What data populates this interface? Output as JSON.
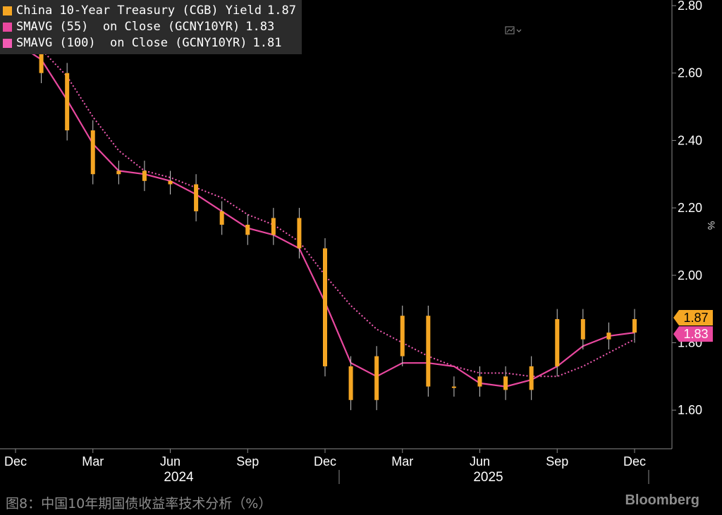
{
  "legend": {
    "items": [
      {
        "name": "China 10-Year Treasury (CGB) Yield",
        "value": "1.87",
        "color": "#f5a623"
      },
      {
        "name": "SMAVG (55)  on Close (GCNY10YR)",
        "value": "1.83",
        "color": "#e9489f"
      },
      {
        "name": "SMAVG (100)  on Close (GCNY10YR)",
        "value": "1.81",
        "color": "#f25bb3"
      }
    ]
  },
  "caption": "图8：中国10年期国债收益率技术分析（%）",
  "brand": "Bloomberg",
  "chart_data": {
    "type": "line",
    "y_unit": "%",
    "ylim": [
      1.5,
      2.8
    ],
    "y_ticks": [
      "2.80",
      "2.60",
      "2.40",
      "2.20",
      "2.00",
      "1.80",
      "1.60"
    ],
    "x_ticks": [
      "Dec",
      "Mar",
      "Jun",
      "Sep",
      "Dec",
      "Mar",
      "Jun",
      "Sep",
      "Dec"
    ],
    "x_tick_dates": [
      "2023-12",
      "2024-03",
      "2024-06",
      "2024-09",
      "2024-12",
      "2025-03",
      "2025-06",
      "2025-09",
      "2025-12"
    ],
    "years": [
      "2024",
      "2025"
    ],
    "grid": false,
    "legend_position": "top-left",
    "last_value_labels": [
      "1.87",
      "1.83"
    ],
    "series": [
      {
        "name": "China 10-Year Treasury (CGB) Yield",
        "style": "candles",
        "color": "#f5a623",
        "x": [
          "2023-12",
          "2024-01",
          "2024-02",
          "2024-03",
          "2024-04",
          "2024-05",
          "2024-06",
          "2024-07",
          "2024-08",
          "2024-09",
          "2024-10",
          "2024-11",
          "2024-12",
          "2025-01",
          "2025-02",
          "2025-03",
          "2025-04",
          "2025-05",
          "2025-06",
          "2025-07",
          "2025-08",
          "2025-09",
          "2025-10",
          "2025-11",
          "2025-12"
        ],
        "values": [
          2.7,
          2.6,
          2.43,
          2.3,
          2.31,
          2.28,
          2.27,
          2.19,
          2.15,
          2.12,
          2.17,
          2.08,
          1.73,
          1.63,
          1.76,
          1.88,
          1.67,
          1.67,
          1.7,
          1.66,
          1.73,
          1.87,
          1.81,
          1.83,
          1.87
        ]
      },
      {
        "name": "SMAVG (55)  on Close (GCNY10YR)",
        "style": "solid",
        "color": "#e9489f",
        "x": [
          "2023-12",
          "2024-01",
          "2024-02",
          "2024-03",
          "2024-04",
          "2024-05",
          "2024-06",
          "2024-07",
          "2024-08",
          "2024-09",
          "2024-10",
          "2024-11",
          "2024-12",
          "2025-01",
          "2025-02",
          "2025-03",
          "2025-04",
          "2025-05",
          "2025-06",
          "2025-07",
          "2025-08",
          "2025-09",
          "2025-10",
          "2025-11",
          "2025-12"
        ],
        "values": [
          2.69,
          2.64,
          2.52,
          2.39,
          2.31,
          2.3,
          2.28,
          2.24,
          2.19,
          2.14,
          2.12,
          2.08,
          1.92,
          1.74,
          1.7,
          1.74,
          1.74,
          1.73,
          1.68,
          1.67,
          1.69,
          1.73,
          1.79,
          1.82,
          1.83
        ]
      },
      {
        "name": "SMAVG (100)  on Close (GCNY10YR)",
        "style": "dotted",
        "color": "#f25bb3",
        "x": [
          "2023-12",
          "2024-01",
          "2024-02",
          "2024-03",
          "2024-04",
          "2024-05",
          "2024-06",
          "2024-07",
          "2024-08",
          "2024-09",
          "2024-10",
          "2024-11",
          "2024-12",
          "2025-01",
          "2025-02",
          "2025-03",
          "2025-04",
          "2025-05",
          "2025-06",
          "2025-07",
          "2025-08",
          "2025-09",
          "2025-10",
          "2025-11",
          "2025-12"
        ],
        "values": [
          2.68,
          2.67,
          2.59,
          2.47,
          2.37,
          2.31,
          2.29,
          2.26,
          2.23,
          2.18,
          2.15,
          2.1,
          2.0,
          1.91,
          1.84,
          1.8,
          1.76,
          1.73,
          1.71,
          1.71,
          1.7,
          1.7,
          1.73,
          1.77,
          1.81
        ]
      }
    ]
  }
}
